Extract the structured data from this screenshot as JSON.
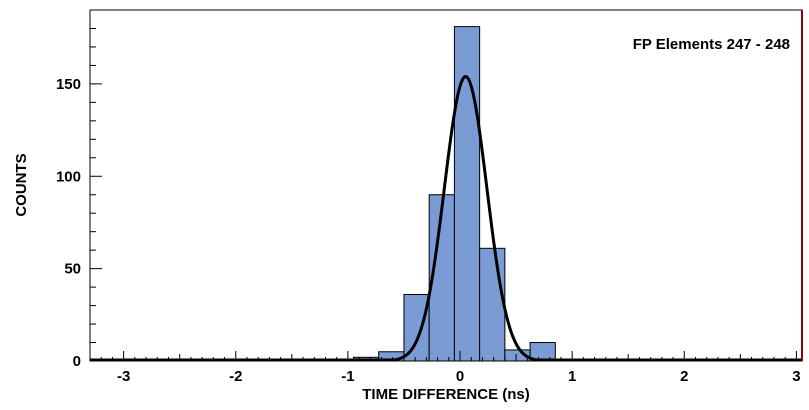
{
  "chart_data": {
    "type": "bar",
    "title": "",
    "annotation": "FP Elements 247 - 248",
    "xlabel": "TIME DIFFERENCE (ns)",
    "ylabel": "COUNTS",
    "xlim": [
      -3.3,
      3.05
    ],
    "ylim": [
      0,
      190
    ],
    "x_ticks": [
      -3,
      -2,
      -1,
      0,
      1,
      2,
      3
    ],
    "y_ticks": [
      0,
      50,
      100,
      150
    ],
    "x_tick_labels": [
      "-3",
      "-2",
      "-1",
      "0",
      "1",
      "2",
      "3"
    ],
    "y_tick_labels": [
      "0",
      "50",
      "100",
      "150"
    ],
    "bin_edges": [
      -0.95,
      -0.725,
      -0.5,
      -0.275,
      -0.05,
      0.175,
      0.4,
      0.625,
      0.85
    ],
    "values": [
      2,
      5,
      36,
      90,
      181,
      61,
      6,
      10
    ],
    "fit_curve": {
      "type": "gaussian",
      "amplitude": 154,
      "mean": 0.05,
      "sigma": 0.19
    },
    "bar_color": "#7b9bd4",
    "fit_color": "#000000",
    "right_axis_color": "#8b0000",
    "grid": false,
    "legend": "none"
  }
}
